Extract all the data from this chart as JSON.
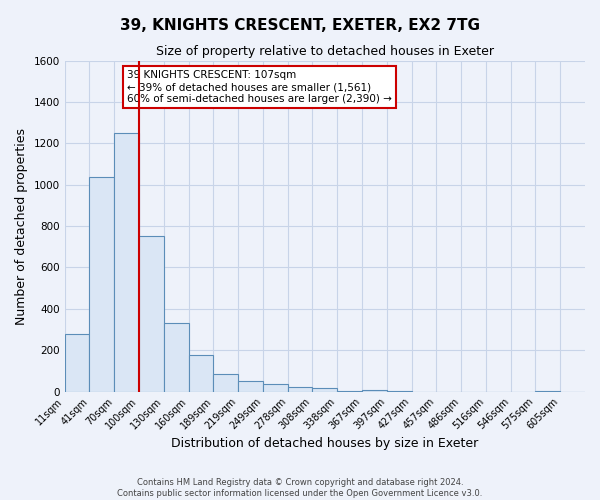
{
  "title_line1": "39, KNIGHTS CRESCENT, EXETER, EX2 7TG",
  "title_line2": "Size of property relative to detached houses in Exeter",
  "xlabel": "Distribution of detached houses by size in Exeter",
  "ylabel": "Number of detached properties",
  "bin_labels": [
    "11sqm",
    "41sqm",
    "70sqm",
    "100sqm",
    "130sqm",
    "160sqm",
    "189sqm",
    "219sqm",
    "249sqm",
    "278sqm",
    "308sqm",
    "338sqm",
    "367sqm",
    "397sqm",
    "427sqm",
    "457sqm",
    "486sqm",
    "516sqm",
    "546sqm",
    "575sqm",
    "605sqm"
  ],
  "bar_heights": [
    280,
    1035,
    1250,
    750,
    330,
    175,
    85,
    50,
    35,
    20,
    15,
    5,
    10,
    5,
    0,
    0,
    0,
    0,
    0,
    5,
    0
  ],
  "bar_color": "#dae6f5",
  "bar_edge_color": "#5b8db8",
  "vline_index": 3,
  "vline_color": "#cc0000",
  "ylim": [
    0,
    1600
  ],
  "yticks": [
    0,
    200,
    400,
    600,
    800,
    1000,
    1200,
    1400,
    1600
  ],
  "annotation_text": "39 KNIGHTS CRESCENT: 107sqm\n← 39% of detached houses are smaller (1,561)\n60% of semi-detached houses are larger (2,390) →",
  "annotation_box_color": "#ffffff",
  "annotation_box_edge": "#cc0000",
  "footer_line1": "Contains HM Land Registry data © Crown copyright and database right 2024.",
  "footer_line2": "Contains public sector information licensed under the Open Government Licence v3.0.",
  "grid_color": "#c8d4e8",
  "background_color": "#eef2fa",
  "title1_fontsize": 11,
  "title2_fontsize": 9,
  "axis_label_fontsize": 9,
  "tick_fontsize": 7,
  "annotation_fontsize": 7.5,
  "footer_fontsize": 6
}
